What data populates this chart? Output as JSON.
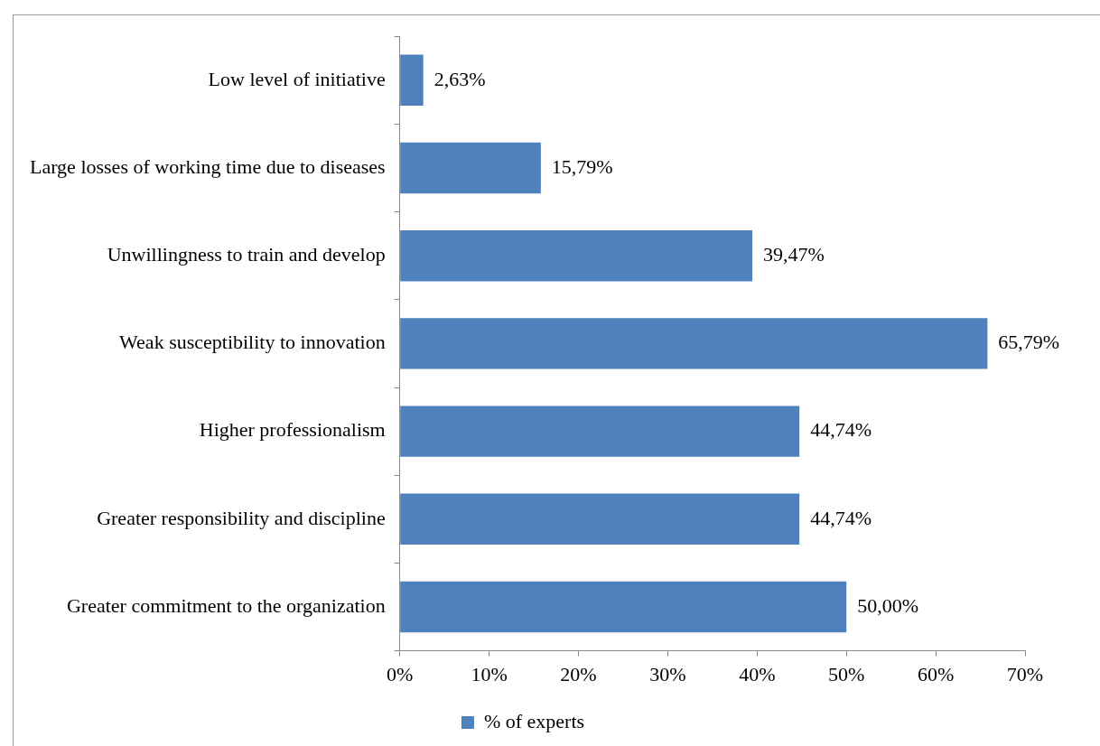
{
  "chart_data": {
    "type": "bar",
    "orientation": "horizontal",
    "categories": [
      "Low level of initiative",
      "Large losses of working time due to diseases",
      "Unwillingness to train and develop",
      "Weak susceptibility to innovation",
      "Higher professionalism",
      "Greater responsibility and discipline",
      "Greater commitment to the organization"
    ],
    "series": [
      {
        "name": "% of experts",
        "color": "#4f81bd",
        "values": [
          2.63,
          15.79,
          39.47,
          65.79,
          44.74,
          44.74,
          50.0
        ],
        "value_labels": [
          "2,63%",
          "15,79%",
          "39,47%",
          "65,79%",
          "44,74%",
          "44,74%",
          "50,00%"
        ]
      }
    ],
    "xlim": [
      0,
      70
    ],
    "xticks": [
      {
        "value": 0,
        "label": "0%"
      },
      {
        "value": 10,
        "label": "10%"
      },
      {
        "value": 20,
        "label": "20%"
      },
      {
        "value": 30,
        "label": "30%"
      },
      {
        "value": 40,
        "label": "40%"
      },
      {
        "value": 50,
        "label": "50%"
      },
      {
        "value": 60,
        "label": "60%"
      },
      {
        "value": 70,
        "label": "70%"
      }
    ],
    "grid": false,
    "legend": "bottom"
  }
}
